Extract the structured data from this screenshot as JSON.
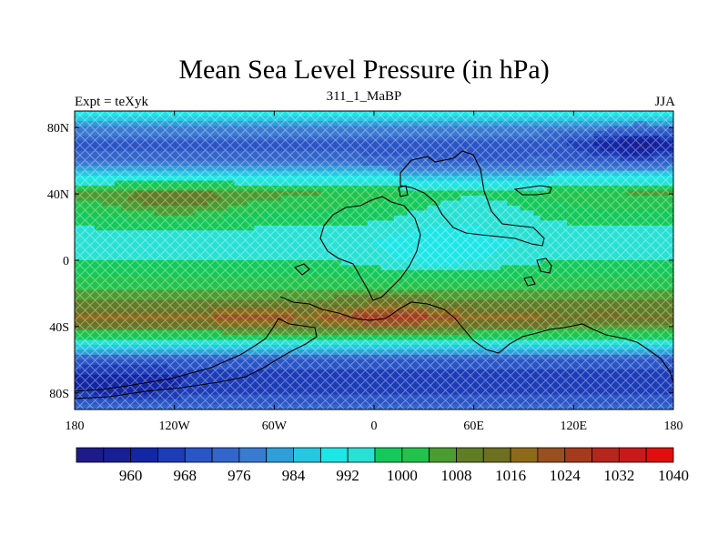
{
  "title": "Mean Sea Level Pressure (in hPa)",
  "left_label": "Expt = teXyk",
  "center_label": "311_1_MaBP",
  "right_label": "JJA",
  "map": {
    "lat_ticks": [
      "80N",
      "40N",
      "0",
      "40S",
      "80S"
    ],
    "lat_values": [
      80,
      40,
      0,
      -40,
      -80
    ],
    "lon_ticks": [
      "180",
      "120W",
      "60W",
      "0",
      "60E",
      "120E",
      "180"
    ],
    "lon_values": [
      -180,
      -120,
      -60,
      0,
      60,
      120,
      180
    ],
    "lat_range": [
      -90,
      90
    ],
    "lon_range": [
      -180,
      180
    ],
    "stipple_color": "#a7c9d9",
    "coastline_color": "#000000"
  },
  "colorbar": {
    "units": "hPa",
    "levels": [
      956,
      960,
      964,
      968,
      972,
      976,
      980,
      984,
      988,
      992,
      996,
      1000,
      1004,
      1008,
      1012,
      1016,
      1020,
      1024,
      1028,
      1032,
      1036,
      1040
    ],
    "labels": [
      "960",
      "968",
      "976",
      "984",
      "992",
      "1000",
      "1008",
      "1016",
      "1024",
      "1032",
      "1040"
    ],
    "label_values": [
      960,
      968,
      976,
      984,
      992,
      1000,
      1008,
      1016,
      1024,
      1032,
      1040
    ],
    "colors": [
      "#1f1a8a",
      "#181f96",
      "#1226a6",
      "#1c3cb8",
      "#2a55c6",
      "#3366cc",
      "#3a7bd2",
      "#2f9fd9",
      "#26c7e3",
      "#1ee6e6",
      "#28e0d4",
      "#14c95a",
      "#22c34c",
      "#4b9c31",
      "#607d26",
      "#6e7021",
      "#8c6a1a",
      "#995020",
      "#a63a1c",
      "#b5261c",
      "#c81a1a",
      "#e00e0e"
    ]
  },
  "chart_data": {
    "type": "heatmap",
    "title": "Mean Sea Level Pressure (in hPa)",
    "xlabel": "",
    "ylabel": "",
    "xlim": [
      -180,
      180
    ],
    "ylim": [
      -90,
      90
    ],
    "x_ticks": [
      "180",
      "120W",
      "60W",
      "0",
      "60E",
      "120E",
      "180"
    ],
    "y_ticks": [
      "80N",
      "40N",
      "0",
      "40S",
      "80S"
    ],
    "zonal_profile_lat": [
      90,
      70,
      60,
      50,
      40,
      30,
      20,
      10,
      0,
      -10,
      -20,
      -30,
      -35,
      -40,
      -50,
      -60,
      -70,
      -80,
      -90
    ],
    "zonal_profile_hPa": [
      990,
      970,
      974,
      990,
      1005,
      1000,
      996,
      994,
      996,
      1000,
      1006,
      1012,
      1018,
      1010,
      992,
      972,
      966,
      968,
      975
    ]
  }
}
